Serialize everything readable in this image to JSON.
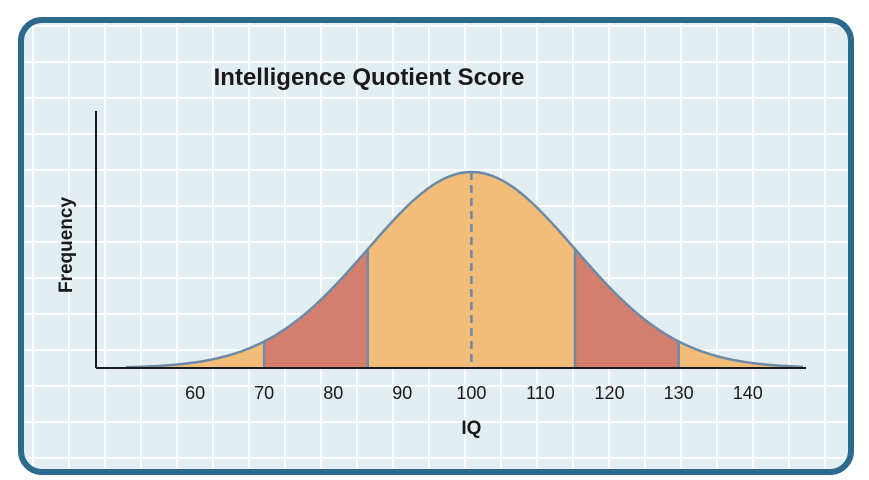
{
  "chart_data": {
    "type": "area",
    "title": "Intelligence Quotient Score",
    "xlabel": "IQ",
    "ylabel": "Frequency",
    "distribution": "normal",
    "mean": 100,
    "std_dev": 15,
    "xlim": [
      50,
      148
    ],
    "x_ticks": [
      60,
      70,
      80,
      90,
      100,
      110,
      120,
      130,
      140
    ],
    "regions": [
      {
        "from": 50,
        "to": 70,
        "color": "#f2bd78"
      },
      {
        "from": 70,
        "to": 85,
        "color": "#d47f6d"
      },
      {
        "from": 85,
        "to": 115,
        "color": "#f2bd78"
      },
      {
        "from": 115,
        "to": 130,
        "color": "#d47f6d"
      },
      {
        "from": 130,
        "to": 148,
        "color": "#f2bd78"
      }
    ],
    "boundaries": [
      70,
      85,
      115,
      130
    ],
    "mean_line": 100,
    "curve_color": "#6d89a8",
    "grid": true
  }
}
